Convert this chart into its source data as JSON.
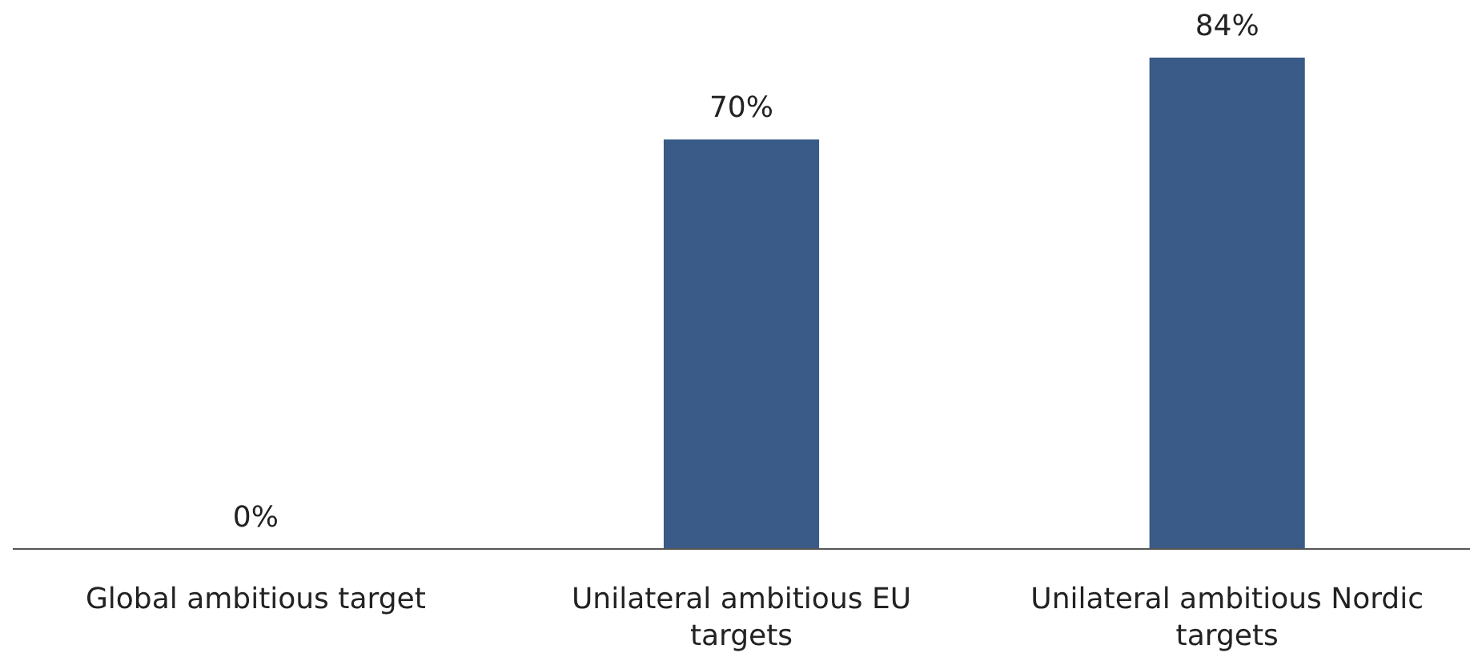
{
  "chart_data": {
    "type": "bar",
    "categories": [
      "Global ambitious target",
      "Unilateral ambitious EU targets",
      "Unilateral ambitious Nordic targets"
    ],
    "values": [
      0,
      70,
      84
    ],
    "value_labels": [
      "0%",
      "70%",
      "84%"
    ],
    "color": "#3a5a87"
  }
}
